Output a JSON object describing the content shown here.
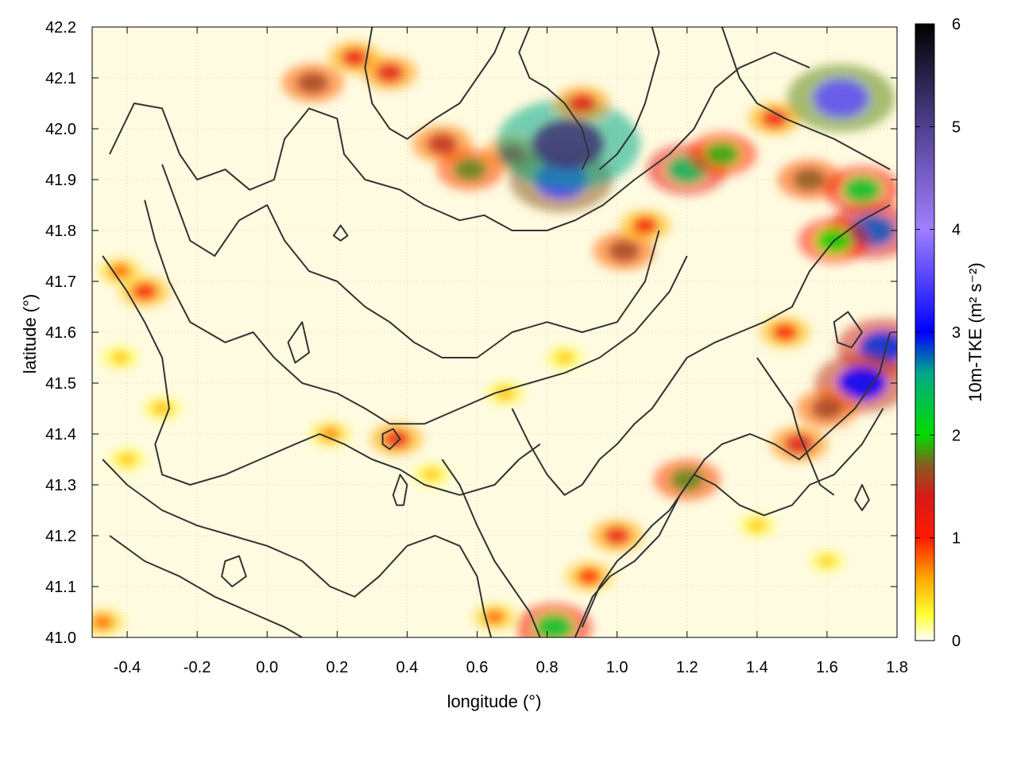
{
  "chart_data": {
    "type": "heatmap",
    "title": "",
    "xlabel": "longitude (°)",
    "ylabel": "latitude (°)",
    "colorbar_label": "10m-TKE (m² s⁻²)",
    "xlim": [
      -0.5,
      1.8
    ],
    "ylim": [
      41.0,
      42.2
    ],
    "clim": [
      0,
      6
    ],
    "x_ticks": [
      {
        "value": -0.4,
        "label": "-0.4"
      },
      {
        "value": -0.2,
        "label": "-0.2"
      },
      {
        "value": 0.0,
        "label": "0.0"
      },
      {
        "value": 0.2,
        "label": "0.2"
      },
      {
        "value": 0.4,
        "label": "0.4"
      },
      {
        "value": 0.6,
        "label": "0.6"
      },
      {
        "value": 0.8,
        "label": "0.8"
      },
      {
        "value": 1.0,
        "label": "1.0"
      },
      {
        "value": 1.2,
        "label": "1.2"
      },
      {
        "value": 1.4,
        "label": "1.4"
      },
      {
        "value": 1.6,
        "label": "1.6"
      },
      {
        "value": 1.8,
        "label": "1.8"
      }
    ],
    "y_ticks": [
      {
        "value": 41.0,
        "label": "41.0"
      },
      {
        "value": 41.1,
        "label": "41.1"
      },
      {
        "value": 41.2,
        "label": "41.2"
      },
      {
        "value": 41.3,
        "label": "41.3"
      },
      {
        "value": 41.4,
        "label": "41.4"
      },
      {
        "value": 41.5,
        "label": "41.5"
      },
      {
        "value": 41.6,
        "label": "41.6"
      },
      {
        "value": 41.7,
        "label": "41.7"
      },
      {
        "value": 41.8,
        "label": "41.8"
      },
      {
        "value": 41.9,
        "label": "41.9"
      },
      {
        "value": 42.0,
        "label": "42.0"
      },
      {
        "value": 42.1,
        "label": "42.1"
      },
      {
        "value": 42.2,
        "label": "42.2"
      }
    ],
    "colorbar_ticks": [
      {
        "value": 0,
        "label": "0"
      },
      {
        "value": 1,
        "label": "1"
      },
      {
        "value": 2,
        "label": "2"
      },
      {
        "value": 3,
        "label": "3"
      },
      {
        "value": 4,
        "label": "4"
      },
      {
        "value": 5,
        "label": "5"
      },
      {
        "value": 6,
        "label": "6"
      }
    ],
    "colormap": [
      {
        "value": 0.0,
        "color": "#ffffff"
      },
      {
        "value": 0.25,
        "color": "#ffff33"
      },
      {
        "value": 0.6,
        "color": "#ffaa00"
      },
      {
        "value": 1.0,
        "color": "#ff1a00"
      },
      {
        "value": 1.4,
        "color": "#d81a1a"
      },
      {
        "value": 1.7,
        "color": "#8a5a20"
      },
      {
        "value": 2.0,
        "color": "#00dd00"
      },
      {
        "value": 2.6,
        "color": "#00aa88"
      },
      {
        "value": 3.0,
        "color": "#0000ff"
      },
      {
        "value": 4.0,
        "color": "#a080ff"
      },
      {
        "value": 5.0,
        "color": "#504090"
      },
      {
        "value": 6.0,
        "color": "#000000"
      }
    ],
    "contour_color": "#333333",
    "grid": true,
    "features": [
      {
        "lon": 0.13,
        "lat": 42.09,
        "tke": 1.6
      },
      {
        "lon": 0.25,
        "lat": 42.14,
        "tke": 1.2
      },
      {
        "lon": 0.35,
        "lat": 42.11,
        "tke": 1.3
      },
      {
        "lon": 0.5,
        "lat": 41.97,
        "tke": 1.5
      },
      {
        "lon": 0.58,
        "lat": 41.92,
        "tke": 1.8
      },
      {
        "lon": 0.7,
        "lat": 41.95,
        "tke": 1.4
      },
      {
        "lon": 0.84,
        "lat": 41.9,
        "tke": 3.4
      },
      {
        "lon": 0.86,
        "lat": 41.97,
        "tke": 5.2
      },
      {
        "lon": 0.9,
        "lat": 42.05,
        "tke": 1.3
      },
      {
        "lon": 1.02,
        "lat": 41.76,
        "tke": 1.6
      },
      {
        "lon": 1.08,
        "lat": 41.81,
        "tke": 1.1
      },
      {
        "lon": 1.2,
        "lat": 41.92,
        "tke": 2.4
      },
      {
        "lon": 1.3,
        "lat": 41.95,
        "tke": 1.9
      },
      {
        "lon": 1.45,
        "lat": 42.02,
        "tke": 1.2
      },
      {
        "lon": 1.55,
        "lat": 41.9,
        "tke": 1.7
      },
      {
        "lon": 1.64,
        "lat": 42.06,
        "tke": 3.6
      },
      {
        "lon": 1.7,
        "lat": 41.88,
        "tke": 2.2
      },
      {
        "lon": 1.73,
        "lat": 41.8,
        "tke": 2.8
      },
      {
        "lon": 1.62,
        "lat": 41.78,
        "tke": 2.0
      },
      {
        "lon": 1.76,
        "lat": 41.57,
        "tke": 2.9
      },
      {
        "lon": 1.7,
        "lat": 41.5,
        "tke": 3.0
      },
      {
        "lon": 1.6,
        "lat": 41.45,
        "tke": 1.6
      },
      {
        "lon": 1.52,
        "lat": 41.38,
        "tke": 1.4
      },
      {
        "lon": 1.48,
        "lat": 41.6,
        "tke": 1.1
      },
      {
        "lon": 1.2,
        "lat": 41.31,
        "tke": 1.8
      },
      {
        "lon": 1.0,
        "lat": 41.2,
        "tke": 1.2
      },
      {
        "lon": 0.92,
        "lat": 41.12,
        "tke": 1.0
      },
      {
        "lon": 0.82,
        "lat": 41.02,
        "tke": 2.2
      },
      {
        "lon": 0.65,
        "lat": 41.04,
        "tke": 0.8
      },
      {
        "lon": -0.35,
        "lat": 41.68,
        "tke": 1.1
      },
      {
        "lon": -0.42,
        "lat": 41.72,
        "tke": 0.8
      },
      {
        "lon": -0.3,
        "lat": 41.45,
        "tke": 0.55
      },
      {
        "lon": -0.42,
        "lat": 41.55,
        "tke": 0.5
      },
      {
        "lon": -0.4,
        "lat": 41.35,
        "tke": 0.5
      },
      {
        "lon": 0.37,
        "lat": 41.39,
        "tke": 1.2
      },
      {
        "lon": 0.18,
        "lat": 41.4,
        "tke": 0.7
      },
      {
        "lon": 0.47,
        "lat": 41.32,
        "tke": 0.5
      },
      {
        "lon": 0.68,
        "lat": 41.48,
        "tke": 0.55
      },
      {
        "lon": 0.85,
        "lat": 41.55,
        "tke": 0.5
      },
      {
        "lon": -0.47,
        "lat": 41.03,
        "tke": 0.8
      },
      {
        "lon": 1.4,
        "lat": 41.22,
        "tke": 0.5
      },
      {
        "lon": 1.6,
        "lat": 41.15,
        "tke": 0.45
      }
    ],
    "contours": [
      [
        [
          -0.45,
          41.95
        ],
        [
          -0.38,
          42.05
        ],
        [
          -0.3,
          42.04
        ],
        [
          -0.25,
          41.95
        ],
        [
          -0.2,
          41.9
        ],
        [
          -0.12,
          41.92
        ],
        [
          -0.05,
          41.88
        ],
        [
          0.02,
          41.9
        ],
        [
          0.05,
          41.98
        ],
        [
          0.12,
          42.04
        ],
        [
          0.2,
          42.02
        ],
        [
          0.22,
          41.95
        ],
        [
          0.28,
          41.9
        ],
        [
          0.38,
          41.88
        ],
        [
          0.45,
          41.85
        ],
        [
          0.55,
          41.82
        ],
        [
          0.62,
          41.83
        ],
        [
          0.7,
          41.8
        ],
        [
          0.8,
          41.8
        ],
        [
          0.88,
          41.82
        ],
        [
          0.96,
          41.85
        ],
        [
          1.05,
          41.9
        ],
        [
          1.15,
          41.95
        ],
        [
          1.22,
          42.0
        ],
        [
          1.28,
          42.08
        ],
        [
          1.35,
          42.12
        ],
        [
          1.45,
          42.15
        ],
        [
          1.55,
          42.12
        ]
      ],
      [
        [
          -0.3,
          41.93
        ],
        [
          -0.22,
          41.78
        ],
        [
          -0.15,
          41.75
        ],
        [
          -0.08,
          41.82
        ],
        [
          0.0,
          41.85
        ],
        [
          0.05,
          41.78
        ],
        [
          0.12,
          41.72
        ],
        [
          0.2,
          41.7
        ],
        [
          0.28,
          41.65
        ],
        [
          0.35,
          41.62
        ],
        [
          0.42,
          41.58
        ],
        [
          0.5,
          41.55
        ],
        [
          0.6,
          41.55
        ],
        [
          0.7,
          41.6
        ],
        [
          0.8,
          41.62
        ],
        [
          0.9,
          41.6
        ],
        [
          1.0,
          41.62
        ],
        [
          1.08,
          41.7
        ],
        [
          1.12,
          41.8
        ]
      ],
      [
        [
          -0.35,
          41.86
        ],
        [
          -0.32,
          41.78
        ],
        [
          -0.28,
          41.7
        ],
        [
          -0.22,
          41.62
        ],
        [
          -0.12,
          41.58
        ],
        [
          -0.04,
          41.6
        ],
        [
          0.02,
          41.55
        ],
        [
          0.1,
          41.5
        ],
        [
          0.2,
          41.48
        ],
        [
          0.28,
          41.45
        ],
        [
          0.35,
          41.42
        ],
        [
          0.45,
          41.42
        ],
        [
          0.55,
          41.45
        ],
        [
          0.65,
          41.48
        ],
        [
          0.75,
          41.5
        ],
        [
          0.85,
          41.52
        ],
        [
          0.95,
          41.55
        ],
        [
          1.05,
          41.6
        ],
        [
          1.15,
          41.68
        ],
        [
          1.2,
          41.75
        ]
      ],
      [
        [
          -0.47,
          41.75
        ],
        [
          -0.4,
          41.68
        ],
        [
          -0.35,
          41.62
        ],
        [
          -0.3,
          41.55
        ],
        [
          -0.28,
          41.45
        ],
        [
          -0.32,
          41.38
        ],
        [
          -0.3,
          41.32
        ],
        [
          -0.22,
          41.3
        ],
        [
          -0.12,
          41.32
        ],
        [
          -0.02,
          41.35
        ],
        [
          0.08,
          41.38
        ],
        [
          0.15,
          41.4
        ],
        [
          0.22,
          41.38
        ],
        [
          0.3,
          41.35
        ],
        [
          0.38,
          41.33
        ],
        [
          0.45,
          41.3
        ],
        [
          0.55,
          41.28
        ],
        [
          0.65,
          41.3
        ],
        [
          0.72,
          41.35
        ],
        [
          0.78,
          41.38
        ]
      ],
      [
        [
          -0.47,
          41.35
        ],
        [
          -0.4,
          41.3
        ],
        [
          -0.3,
          41.25
        ],
        [
          -0.2,
          41.22
        ],
        [
          -0.1,
          41.2
        ],
        [
          0.0,
          41.18
        ],
        [
          0.1,
          41.15
        ],
        [
          0.18,
          41.1
        ],
        [
          0.25,
          41.08
        ],
        [
          0.32,
          41.12
        ],
        [
          0.4,
          41.18
        ],
        [
          0.48,
          41.2
        ],
        [
          0.55,
          41.18
        ],
        [
          0.6,
          41.12
        ],
        [
          0.62,
          41.05
        ],
        [
          0.64,
          41.0
        ]
      ],
      [
        [
          -0.45,
          41.2
        ],
        [
          -0.35,
          41.15
        ],
        [
          -0.25,
          41.12
        ],
        [
          -0.15,
          41.08
        ],
        [
          -0.05,
          41.05
        ],
        [
          0.05,
          41.02
        ],
        [
          0.1,
          41.0
        ]
      ],
      [
        [
          0.5,
          41.35
        ],
        [
          0.55,
          41.3
        ],
        [
          0.6,
          41.22
        ],
        [
          0.65,
          41.15
        ],
        [
          0.7,
          41.1
        ],
        [
          0.75,
          41.05
        ],
        [
          0.78,
          41.0
        ]
      ],
      [
        [
          0.9,
          41.02
        ],
        [
          0.95,
          41.1
        ],
        [
          1.0,
          41.15
        ],
        [
          1.05,
          41.18
        ],
        [
          1.1,
          41.22
        ],
        [
          1.15,
          41.25
        ],
        [
          1.2,
          41.3
        ],
        [
          1.25,
          41.35
        ],
        [
          1.3,
          41.38
        ],
        [
          1.38,
          41.4
        ],
        [
          1.45,
          41.38
        ],
        [
          1.52,
          41.35
        ],
        [
          1.6,
          41.4
        ],
        [
          1.68,
          41.45
        ],
        [
          1.75,
          41.52
        ],
        [
          1.78,
          41.6
        ]
      ],
      [
        [
          0.88,
          41.0
        ],
        [
          0.93,
          41.08
        ],
        [
          0.98,
          41.12
        ],
        [
          1.05,
          41.15
        ],
        [
          1.12,
          41.2
        ],
        [
          1.18,
          41.28
        ],
        [
          1.22,
          41.32
        ],
        [
          1.28,
          41.3
        ],
        [
          1.35,
          41.26
        ],
        [
          1.42,
          41.24
        ],
        [
          1.5,
          41.26
        ],
        [
          1.55,
          41.3
        ],
        [
          1.62,
          41.32
        ],
        [
          1.7,
          41.38
        ],
        [
          1.76,
          41.45
        ]
      ],
      [
        [
          0.7,
          41.45
        ],
        [
          0.75,
          41.38
        ],
        [
          0.8,
          41.32
        ],
        [
          0.85,
          41.28
        ],
        [
          0.9,
          41.3
        ],
        [
          0.95,
          41.35
        ],
        [
          1.0,
          41.38
        ],
        [
          1.05,
          41.42
        ],
        [
          1.1,
          41.45
        ],
        [
          1.15,
          41.5
        ],
        [
          1.2,
          41.55
        ],
        [
          1.28,
          41.58
        ],
        [
          1.35,
          41.6
        ],
        [
          1.42,
          41.62
        ],
        [
          1.5,
          41.65
        ],
        [
          1.55,
          41.72
        ],
        [
          1.62,
          41.78
        ],
        [
          1.7,
          41.82
        ],
        [
          1.78,
          41.85
        ]
      ],
      [
        [
          0.95,
          41.92
        ],
        [
          1.0,
          41.95
        ],
        [
          1.05,
          42.0
        ],
        [
          1.08,
          42.05
        ],
        [
          1.1,
          42.1
        ],
        [
          1.12,
          42.15
        ],
        [
          1.1,
          42.2
        ]
      ],
      [
        [
          0.75,
          42.2
        ],
        [
          0.72,
          42.15
        ],
        [
          0.75,
          42.1
        ],
        [
          0.8,
          42.08
        ],
        [
          0.85,
          42.05
        ],
        [
          0.9,
          42.0
        ],
        [
          0.92,
          41.95
        ],
        [
          0.9,
          41.92
        ]
      ],
      [
        [
          0.3,
          42.2
        ],
        [
          0.28,
          42.12
        ],
        [
          0.3,
          42.05
        ],
        [
          0.35,
          42.0
        ],
        [
          0.4,
          41.98
        ],
        [
          0.48,
          42.02
        ],
        [
          0.55,
          42.05
        ],
        [
          0.6,
          42.1
        ],
        [
          0.65,
          42.15
        ],
        [
          0.68,
          42.2
        ]
      ],
      [
        [
          1.3,
          42.2
        ],
        [
          1.35,
          42.1
        ],
        [
          1.4,
          42.05
        ],
        [
          1.48,
          42.02
        ],
        [
          1.55,
          42.0
        ],
        [
          1.62,
          41.98
        ],
        [
          1.7,
          41.95
        ],
        [
          1.78,
          41.92
        ]
      ],
      [
        [
          1.4,
          41.55
        ],
        [
          1.45,
          41.5
        ],
        [
          1.5,
          41.45
        ],
        [
          1.52,
          41.4
        ],
        [
          1.55,
          41.35
        ],
        [
          1.58,
          41.3
        ],
        [
          1.62,
          41.28
        ]
      ]
    ],
    "closed_contours": [
      [
        [
          0.33,
          41.4
        ],
        [
          0.36,
          41.41
        ],
        [
          0.38,
          41.39
        ],
        [
          0.35,
          41.37
        ],
        [
          0.33,
          41.38
        ]
      ],
      [
        [
          0.36,
          41.28
        ],
        [
          0.38,
          41.32
        ],
        [
          0.4,
          41.3
        ],
        [
          0.39,
          41.26
        ],
        [
          0.37,
          41.26
        ]
      ],
      [
        [
          1.62,
          41.62
        ],
        [
          1.66,
          41.64
        ],
        [
          1.7,
          41.6
        ],
        [
          1.67,
          41.57
        ],
        [
          1.63,
          41.58
        ]
      ],
      [
        [
          0.19,
          41.79
        ],
        [
          0.21,
          41.81
        ],
        [
          0.23,
          41.79
        ],
        [
          0.21,
          41.78
        ]
      ],
      [
        [
          -0.12,
          41.15
        ],
        [
          -0.08,
          41.16
        ],
        [
          -0.06,
          41.12
        ],
        [
          -0.1,
          41.1
        ],
        [
          -0.13,
          41.12
        ]
      ],
      [
        [
          1.68,
          41.27
        ],
        [
          1.7,
          41.3
        ],
        [
          1.72,
          41.27
        ],
        [
          1.7,
          41.25
        ]
      ],
      [
        [
          0.06,
          41.58
        ],
        [
          0.1,
          41.62
        ],
        [
          0.12,
          41.56
        ],
        [
          0.08,
          41.54
        ]
      ]
    ]
  }
}
